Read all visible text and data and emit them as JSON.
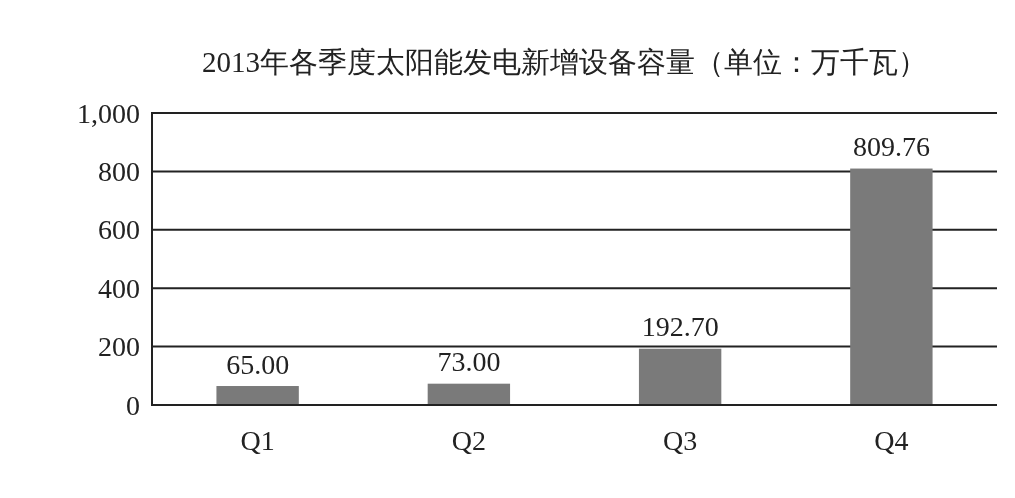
{
  "chart_data": {
    "type": "bar",
    "title": "2013年各季度太阳能发电新增设备容量（单位：万千瓦）",
    "categories": [
      "Q1",
      "Q2",
      "Q3",
      "Q4"
    ],
    "values": [
      65.0,
      73.0,
      192.7,
      809.76
    ],
    "value_labels": [
      "65.00",
      "73.00",
      "192.70",
      "809.76"
    ],
    "color": "#7a7a7a",
    "ylim": [
      0,
      1000
    ],
    "yticks": [
      0,
      200,
      400,
      600,
      800,
      {
        "value": 1000,
        "label": "1,000"
      }
    ],
    "grid": "y"
  }
}
